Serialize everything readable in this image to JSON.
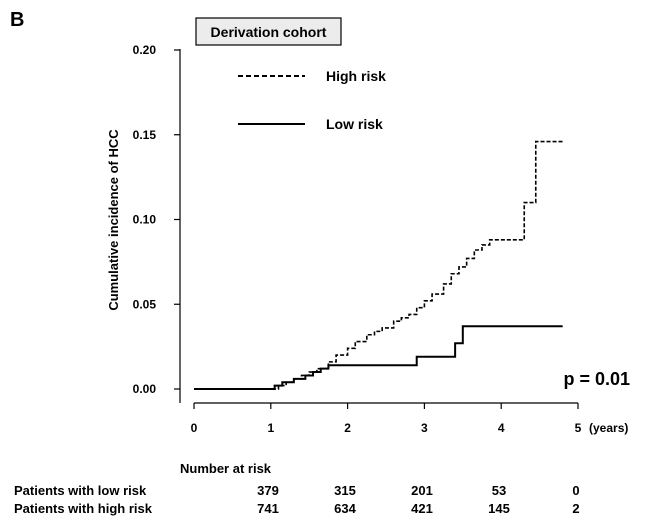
{
  "panel_label": "B",
  "cohort_label": "Derivation cohort",
  "p_value_text": "p = 0.01",
  "number_at_risk": {
    "title": "Number at risk",
    "rows": [
      {
        "label": "Patients with low risk",
        "values": [
          "379",
          "315",
          "201",
          "53",
          "0"
        ]
      },
      {
        "label": "Patients with high risk",
        "values": [
          "741",
          "634",
          "421",
          "145",
          "2"
        ]
      }
    ]
  },
  "chart_data": {
    "type": "line",
    "ylabel": "Cumulative incidence of HCC",
    "xunit": "(years)",
    "xlim": [
      0,
      5
    ],
    "ylim": [
      0,
      0.2
    ],
    "x_ticks": [
      "0",
      "1",
      "2",
      "3",
      "4",
      "5"
    ],
    "y_ticks": [
      "0.00",
      "0.05",
      "0.10",
      "0.15",
      "0.20"
    ],
    "grid": false,
    "legend_position": "top-left",
    "series": [
      {
        "name": "High risk",
        "line_style": "dashed",
        "color": "#000000",
        "x": [
          0,
          1.1,
          1.2,
          1.3,
          1.4,
          1.5,
          1.6,
          1.75,
          1.85,
          2.0,
          2.1,
          2.25,
          2.35,
          2.45,
          2.6,
          2.7,
          2.8,
          2.9,
          3.0,
          3.1,
          3.25,
          3.35,
          3.45,
          3.55,
          3.65,
          3.75,
          3.85,
          4.3,
          4.45,
          4.8
        ],
        "y": [
          0,
          0.002,
          0.004,
          0.006,
          0.008,
          0.01,
          0.012,
          0.016,
          0.02,
          0.024,
          0.028,
          0.032,
          0.034,
          0.036,
          0.04,
          0.042,
          0.044,
          0.048,
          0.052,
          0.056,
          0.062,
          0.068,
          0.072,
          0.077,
          0.082,
          0.085,
          0.088,
          0.11,
          0.146,
          0.146
        ]
      },
      {
        "name": "Low risk",
        "line_style": "solid",
        "color": "#000000",
        "x": [
          0,
          1.0,
          1.05,
          1.15,
          1.3,
          1.45,
          1.55,
          1.65,
          1.75,
          2.9,
          3.4,
          3.5,
          4.8
        ],
        "y": [
          0,
          0,
          0.002,
          0.004,
          0.006,
          0.008,
          0.01,
          0.012,
          0.014,
          0.019,
          0.027,
          0.037,
          0.037
        ]
      }
    ]
  }
}
